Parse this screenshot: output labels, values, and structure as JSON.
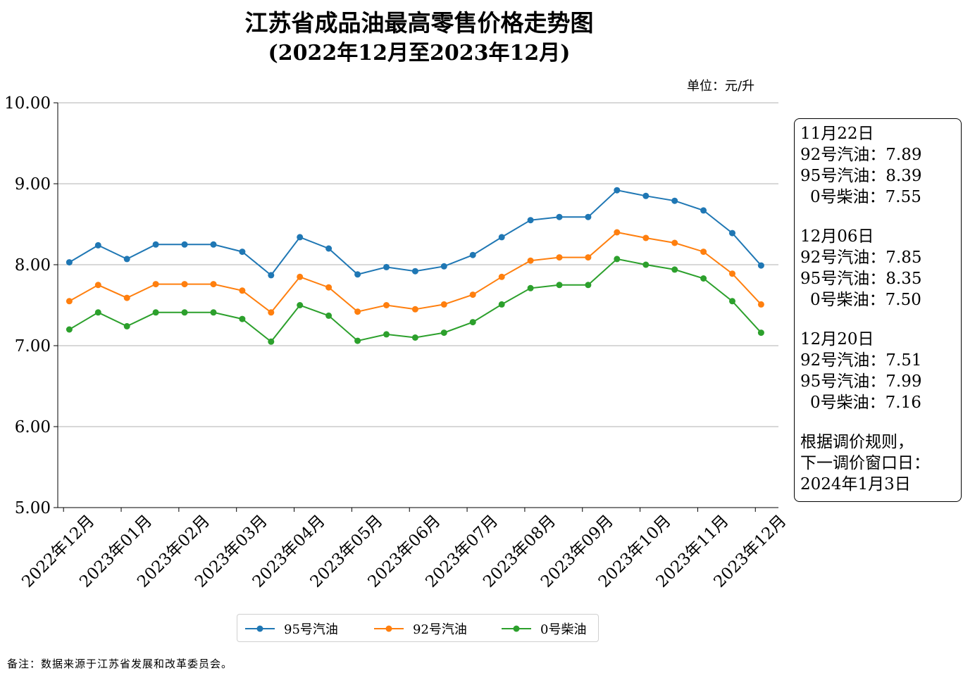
{
  "title": {
    "line1": "江苏省成品油最高零售价格走势图",
    "line2": "(2022年12月至2023年12月)"
  },
  "unit": "单位：元/升",
  "note": "备注：数据来源于江苏省发展和改革委员会。",
  "annotation": {
    "blocks": [
      {
        "date": "11月22日",
        "lines": [
          {
            "label": "92号汽油：",
            "value": "7.89"
          },
          {
            "label": "95号汽油：",
            "value": "8.39"
          },
          {
            "label": "0号柴油：",
            "value": "7.55"
          }
        ]
      },
      {
        "date": "12月06日",
        "lines": [
          {
            "label": "92号汽油：",
            "value": "7.85"
          },
          {
            "label": "95号汽油：",
            "value": "8.35"
          },
          {
            "label": "0号柴油：",
            "value": "7.50"
          }
        ]
      },
      {
        "date": "12月20日",
        "lines": [
          {
            "label": "92号汽油：",
            "value": "7.51"
          },
          {
            "label": "95号汽油：",
            "value": "7.99"
          },
          {
            "label": "0号柴油：",
            "value": "7.16"
          }
        ]
      }
    ],
    "footer": [
      "根据调价规则，",
      "下一调价窗口日：",
      "2024年1月3日"
    ]
  },
  "chart_data": {
    "type": "line",
    "title": "江苏省成品油最高零售价格走势图 (2022年12月至2023年12月)",
    "ylabel": "单位：元/升",
    "ylim": [
      5.0,
      10.0
    ],
    "yticks": [
      5.0,
      6.0,
      7.0,
      8.0,
      9.0,
      10.0
    ],
    "ytick_labels": [
      "5.00",
      "6.00",
      "7.00",
      "8.00",
      "9.00",
      "10.00"
    ],
    "xlim": [
      -0.1,
      12.4
    ],
    "month_labels": [
      "2022年12月",
      "2023年01月",
      "2023年02月",
      "2023年03月",
      "2023年04月",
      "2023年05月",
      "2023年06月",
      "2023年07月",
      "2023年08月",
      "2023年09月",
      "2023年10月",
      "2023年11月",
      "2023年12月"
    ],
    "x": [
      0.1,
      0.6,
      1.1,
      1.6,
      2.1,
      2.6,
      3.1,
      3.6,
      4.1,
      4.6,
      5.1,
      5.6,
      6.1,
      6.6,
      7.1,
      7.6,
      8.1,
      8.6,
      9.1,
      9.6,
      10.1,
      10.6,
      11.1,
      11.6,
      12.1
    ],
    "grid": "y",
    "legend_position": "bottom",
    "series": [
      {
        "name": "95号汽油",
        "color": "#1f77b4",
        "values": [
          8.03,
          8.24,
          8.07,
          8.25,
          8.25,
          8.25,
          8.16,
          7.87,
          8.34,
          8.2,
          7.88,
          7.97,
          7.92,
          7.98,
          8.12,
          8.34,
          8.55,
          8.59,
          8.59,
          8.92,
          8.85,
          8.79,
          8.67,
          8.39,
          7.99
        ]
      },
      {
        "name": "92号汽油",
        "color": "#ff7f0e",
        "values": [
          7.55,
          7.75,
          7.59,
          7.76,
          7.76,
          7.76,
          7.68,
          7.41,
          7.85,
          7.72,
          7.42,
          7.5,
          7.45,
          7.51,
          7.63,
          7.85,
          8.05,
          8.09,
          8.09,
          8.4,
          8.33,
          8.27,
          8.16,
          7.89,
          7.51
        ]
      },
      {
        "name": "0号柴油",
        "color": "#2ca02c",
        "values": [
          7.2,
          7.41,
          7.24,
          7.41,
          7.41,
          7.41,
          7.33,
          7.05,
          7.5,
          7.37,
          7.06,
          7.14,
          7.1,
          7.16,
          7.29,
          7.51,
          7.71,
          7.75,
          7.75,
          8.07,
          8.0,
          7.94,
          7.83,
          7.55,
          7.16
        ]
      }
    ]
  }
}
